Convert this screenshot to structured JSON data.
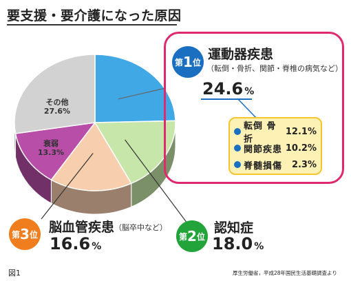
{
  "title": "要支援・要介護になった原因",
  "chart_data": {
    "type": "pie",
    "title": "要支援・要介護になった原因",
    "slices": [
      {
        "label": "運動器疾患",
        "value": 24.6,
        "color": "#41a8e6"
      },
      {
        "label": "認知症",
        "value": 18.0,
        "color": "#c7e6a9"
      },
      {
        "label": "脳血管疾患",
        "value": 16.6,
        "color": "#f8cfae"
      },
      {
        "label": "衰弱",
        "value": 13.3,
        "color": "#b84ea8"
      },
      {
        "label": "その他",
        "value": 27.6,
        "color": "#d2d2d2"
      }
    ],
    "inner_labels": {
      "other": {
        "name": "その他",
        "value": "27.6%"
      },
      "weakness": {
        "name": "衰弱",
        "value": "13.3%"
      }
    },
    "breakdown": [
      {
        "name": "転倒 骨折",
        "value": "12.1%"
      },
      {
        "name": "関節疾患",
        "value": "10.2%"
      },
      {
        "name": "脊髄損傷",
        "value": "2.3%"
      }
    ]
  },
  "callouts": {
    "rank1": {
      "pre": "第",
      "num": "1",
      "post": "位",
      "name": "運動器疾患",
      "sub": "（転倒・骨折、関節・脊椎の病気など）",
      "pct": "24.6",
      "unit": "%"
    },
    "rank2": {
      "pre": "第",
      "num": "2",
      "post": "位",
      "name": "認知症",
      "pct": "18.0",
      "unit": "%"
    },
    "rank3": {
      "pre": "第",
      "num": "3",
      "post": "位",
      "name": "脳血管疾患",
      "sub": "（脳卒中など）",
      "pct": "16.6",
      "unit": "%"
    }
  },
  "colors": {
    "highlight_border": "#e0286e",
    "rank1": "#1b6fc0",
    "rank2": "#22a43a",
    "rank3": "#f07d1e",
    "breakdown_bg": "#fdf1b6",
    "breakdown_border": "#f4c431"
  },
  "footer": {
    "figure": "図1",
    "source": "厚生労働省，平成28年国民生活基礎調査より"
  }
}
